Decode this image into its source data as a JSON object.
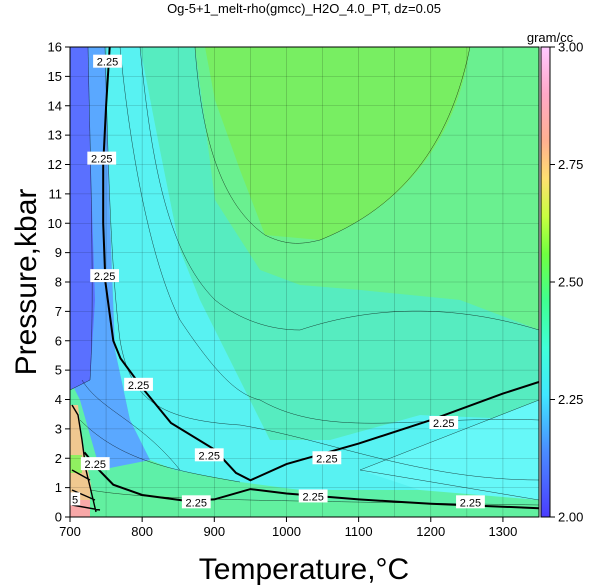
{
  "chart_data": {
    "type": "heatmap",
    "title": "Og-5+1_melt-rho(gmcc)_H2O_4.0_PT, dz=0.05",
    "xlabel": "Temperature,°C",
    "ylabel": "Pressure,kbar",
    "xlim": [
      700,
      1350
    ],
    "ylim": [
      0,
      16
    ],
    "x_ticks": [
      "700",
      "800",
      "900",
      "1000",
      "1100",
      "1200",
      "1300"
    ],
    "y_ticks": [
      "0",
      "1",
      "2",
      "3",
      "4",
      "5",
      "6",
      "7",
      "8",
      "9",
      "10",
      "11",
      "12",
      "13",
      "14",
      "15",
      "16"
    ],
    "grid": true,
    "colorbar": {
      "label": "gram/cc",
      "min": 2.0,
      "max": 3.0,
      "ticks": [
        "2.00",
        "2.25",
        "2.50",
        "2.75",
        "3.00"
      ],
      "colors": [
        "#4040ff",
        "#40c0ff",
        "#40ffc0",
        "#60ff60",
        "#c0ff40",
        "#ffd080",
        "#ffa0a0",
        "#ffc0ff"
      ]
    },
    "contour_labels": [
      {
        "text": "2.25",
        "T": 752,
        "P": 15.5
      },
      {
        "text": "2.25",
        "T": 744,
        "P": 12.2
      },
      {
        "text": "2.25",
        "T": 748,
        "P": 8.2
      },
      {
        "text": "2.25",
        "T": 795,
        "P": 4.5
      },
      {
        "text": "2.25",
        "T": 893,
        "P": 2.1
      },
      {
        "text": "2.25",
        "T": 1056,
        "P": 2.0
      },
      {
        "text": "2.25",
        "T": 1218,
        "P": 3.2
      },
      {
        "text": "2.25",
        "T": 875,
        "P": 0.5
      },
      {
        "text": "2.25",
        "T": 1037,
        "P": 0.7
      },
      {
        "text": "2.25",
        "T": 1255,
        "P": 0.5
      },
      {
        "text": "2.25",
        "T": 735,
        "P": 1.8
      },
      {
        "text": "5",
        "T": 707,
        "P": 0.6
      }
    ],
    "main_contour_2_25": [
      [
        755,
        16.0
      ],
      [
        750,
        14.0
      ],
      [
        746,
        12.0
      ],
      [
        746,
        10.0
      ],
      [
        749,
        8.0
      ],
      [
        760,
        6.0
      ],
      [
        770,
        5.4
      ],
      [
        800,
        4.4
      ],
      [
        840,
        3.2
      ],
      [
        900,
        2.3
      ],
      [
        930,
        1.5
      ],
      [
        950,
        1.25
      ],
      [
        1000,
        1.8
      ],
      [
        1100,
        2.5
      ],
      [
        1200,
        3.3
      ],
      [
        1300,
        4.2
      ],
      [
        1350,
        4.6
      ]
    ],
    "low_contour_2_25": [
      [
        720,
        2.2
      ],
      [
        740,
        1.6
      ],
      [
        760,
        1.1
      ],
      [
        800,
        0.75
      ],
      [
        860,
        0.55
      ],
      [
        900,
        0.6
      ],
      [
        950,
        0.95
      ],
      [
        1000,
        0.8
      ],
      [
        1100,
        0.6
      ],
      [
        1200,
        0.45
      ],
      [
        1300,
        0.35
      ],
      [
        1350,
        0.3
      ]
    ]
  }
}
